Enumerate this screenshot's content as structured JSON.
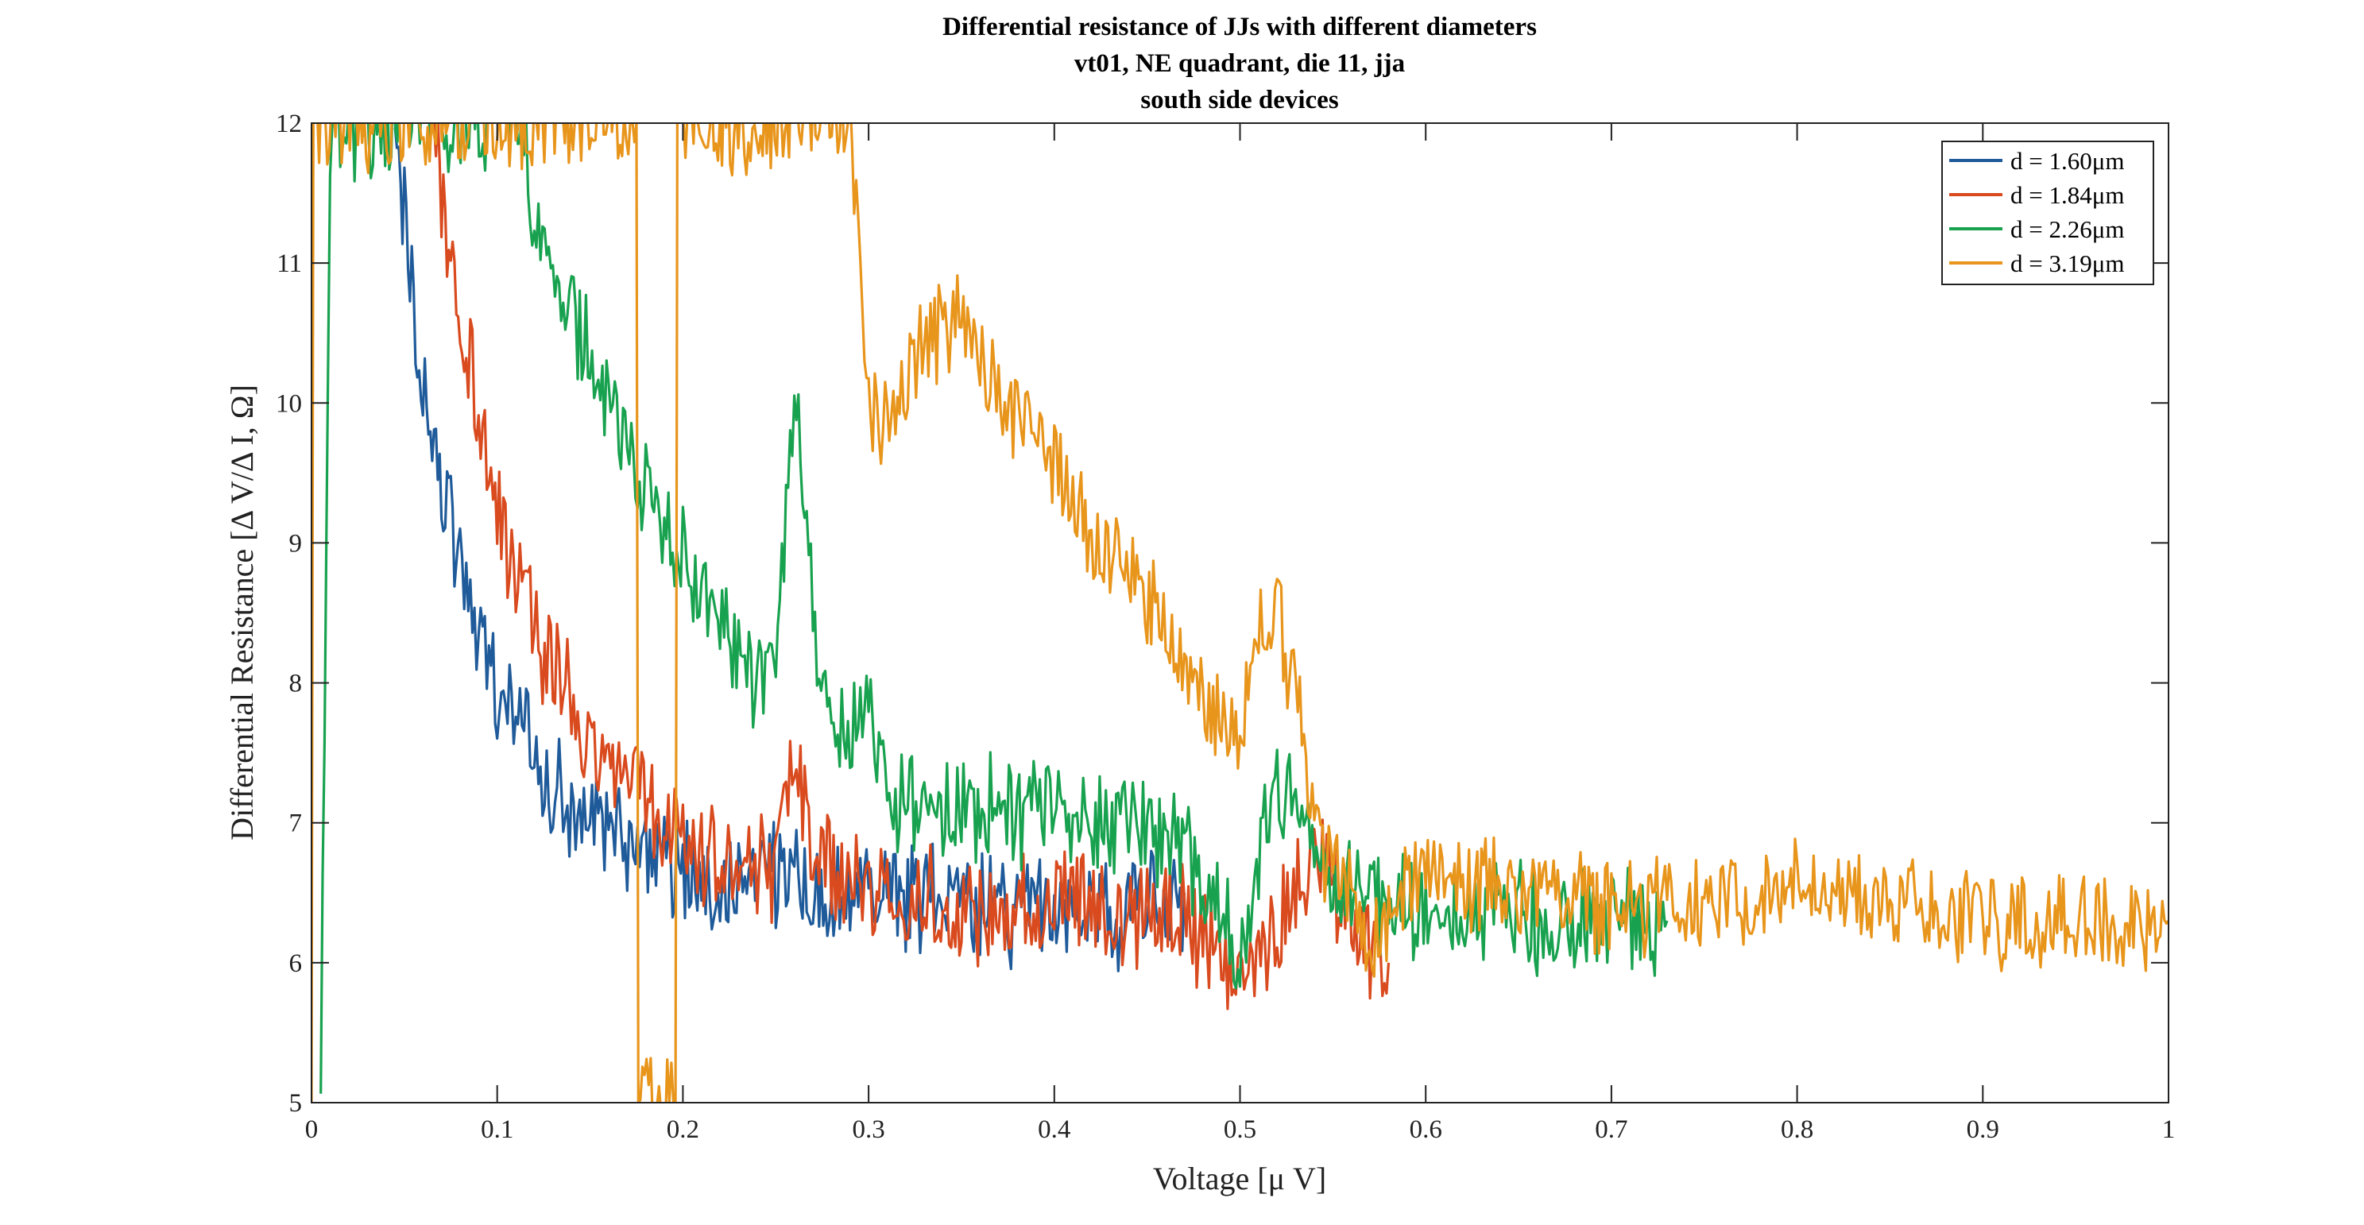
{
  "chart_data": {
    "type": "line",
    "title_lines": [
      "Differential resistance of JJs with different diameters",
      "vt01, NE quadrant, die 11, jja",
      "south side devices"
    ],
    "xlabel": "Voltage [μ V]",
    "ylabel": "Differential Resistance [Δ V/Δ I, Ω]",
    "xlim": [
      0,
      1
    ],
    "ylim": [
      5,
      12
    ],
    "xticks": [
      0,
      0.1,
      0.2,
      0.3,
      0.4,
      0.5,
      0.6,
      0.7,
      0.8,
      0.9,
      1
    ],
    "xtick_labels": [
      "0",
      "0.1",
      "0.2",
      "0.3",
      "0.4",
      "0.5",
      "0.6",
      "0.7",
      "0.8",
      "0.9",
      "1"
    ],
    "yticks": [
      5,
      6,
      7,
      8,
      9,
      10,
      11,
      12
    ],
    "ytick_labels": [
      "5",
      "6",
      "7",
      "8",
      "9",
      "10",
      "11",
      "12"
    ],
    "grid": false,
    "legend_position": "top-right",
    "series": [
      {
        "name": "d = 1.60μm",
        "color": "#1f5b9a",
        "x": [
          0.045,
          0.05,
          0.055,
          0.06,
          0.065,
          0.07,
          0.075,
          0.08,
          0.09,
          0.1,
          0.11,
          0.12,
          0.13,
          0.14,
          0.15,
          0.16,
          0.18,
          0.2,
          0.22,
          0.25,
          0.28,
          0.3,
          0.33,
          0.36,
          0.4,
          0.43,
          0.45,
          0.47
        ],
        "y": [
          12.0,
          11.3,
          10.7,
          10.2,
          9.8,
          9.4,
          9.1,
          8.8,
          8.4,
          8.0,
          7.7,
          7.5,
          7.3,
          7.1,
          7.0,
          6.9,
          6.8,
          6.7,
          6.6,
          6.6,
          6.5,
          6.5,
          6.5,
          6.4,
          6.4,
          6.3,
          6.5,
          6.5
        ],
        "noise": 0.45
      },
      {
        "name": "d = 1.84μm",
        "color": "#d94a1e",
        "x": [
          0.065,
          0.07,
          0.075,
          0.08,
          0.09,
          0.1,
          0.11,
          0.12,
          0.13,
          0.14,
          0.15,
          0.17,
          0.19,
          0.21,
          0.23,
          0.25,
          0.26,
          0.27,
          0.29,
          0.31,
          0.34,
          0.38,
          0.42,
          0.46,
          0.48,
          0.5,
          0.52,
          0.54,
          0.56,
          0.58
        ],
        "y": [
          12.0,
          11.6,
          11.1,
          10.6,
          9.9,
          9.3,
          8.8,
          8.4,
          8.1,
          7.9,
          7.6,
          7.3,
          7.0,
          6.8,
          6.7,
          6.6,
          7.4,
          6.8,
          6.6,
          6.5,
          6.4,
          6.4,
          6.4,
          6.4,
          6.2,
          5.8,
          6.2,
          6.8,
          6.2,
          6.0
        ],
        "noise": 0.45
      },
      {
        "name": "d = 2.26μm",
        "color": "#18a24f",
        "x": [
          0.005,
          0.01,
          0.11,
          0.12,
          0.13,
          0.15,
          0.17,
          0.19,
          0.21,
          0.23,
          0.25,
          0.26,
          0.27,
          0.28,
          0.29,
          0.3,
          0.31,
          0.33,
          0.36,
          0.39,
          0.42,
          0.45,
          0.48,
          0.5,
          0.52,
          0.54,
          0.56,
          0.58,
          0.6,
          0.63,
          0.66,
          0.7,
          0.73
        ],
        "y": [
          5.0,
          12.0,
          12.0,
          11.5,
          11.0,
          10.3,
          9.7,
          9.1,
          8.6,
          8.2,
          8.0,
          10.1,
          8.5,
          7.8,
          7.5,
          8.0,
          7.1,
          7.1,
          7.1,
          7.1,
          7.0,
          7.0,
          6.6,
          6.0,
          7.3,
          6.8,
          6.5,
          6.4,
          6.4,
          6.4,
          6.3,
          6.3,
          6.3
        ],
        "noise": 0.45
      },
      {
        "name": "d = 3.19μm",
        "color": "#e8951c",
        "x": [
          0.0,
          0.001,
          0.003,
          0.175,
          0.176,
          0.196,
          0.197,
          0.29,
          0.3,
          0.31,
          0.33,
          0.35,
          0.38,
          0.42,
          0.45,
          0.48,
          0.5,
          0.51,
          0.52,
          0.53,
          0.54,
          0.55,
          0.57,
          0.6,
          0.65,
          0.7,
          0.75,
          0.8,
          0.85,
          0.9,
          0.95,
          1.0
        ],
        "y": [
          5.0,
          12.0,
          12.0,
          12.0,
          5.0,
          5.0,
          12.0,
          12.0,
          10.0,
          9.8,
          10.4,
          10.6,
          9.9,
          9.1,
          8.6,
          7.9,
          7.6,
          8.4,
          8.6,
          7.9,
          7.1,
          6.6,
          6.2,
          6.7,
          6.5,
          6.4,
          6.4,
          6.6,
          6.4,
          6.3,
          6.3,
          6.3
        ],
        "noise": 0.4
      }
    ]
  }
}
